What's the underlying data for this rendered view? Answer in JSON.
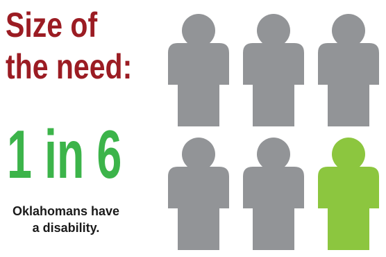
{
  "headline": {
    "line1": "Size of",
    "line2": "the need:"
  },
  "statistic": {
    "ratio": "1 in 6"
  },
  "caption": {
    "line1": "Oklahomans have",
    "line2": "a disability."
  },
  "figures": {
    "total": 6,
    "highlighted": 1,
    "highlighted_index": 6,
    "icon": "person-icon"
  },
  "colors": {
    "headline": "#9b1c23",
    "ratio": "#3cb44a",
    "caption": "#1a1a1a",
    "figure_default": "#929497",
    "figure_highlight": "#8cc63f"
  }
}
